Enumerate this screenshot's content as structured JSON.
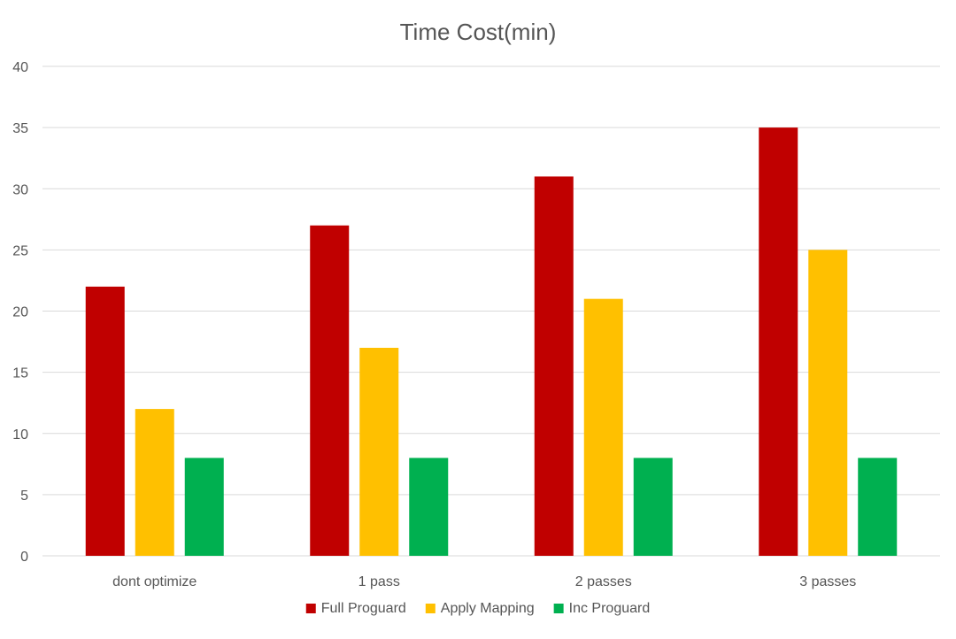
{
  "chart_data": {
    "type": "bar",
    "title": "Time Cost(min)",
    "xlabel": "",
    "ylabel": "",
    "ylim": [
      0,
      40
    ],
    "yticks": [
      0,
      5,
      10,
      15,
      20,
      25,
      30,
      35,
      40
    ],
    "grid": true,
    "legend_position": "bottom",
    "categories": [
      "dont optimize",
      "1 pass",
      "2 passes",
      "3 passes"
    ],
    "series": [
      {
        "name": "Full Proguard",
        "color": "#c00000",
        "values": [
          22,
          27,
          31,
          35
        ]
      },
      {
        "name": "Apply Mapping",
        "color": "#ffc000",
        "values": [
          12,
          17,
          21,
          25
        ]
      },
      {
        "name": "Inc Proguard",
        "color": "#00b050",
        "values": [
          8,
          8,
          8,
          8
        ]
      }
    ]
  }
}
